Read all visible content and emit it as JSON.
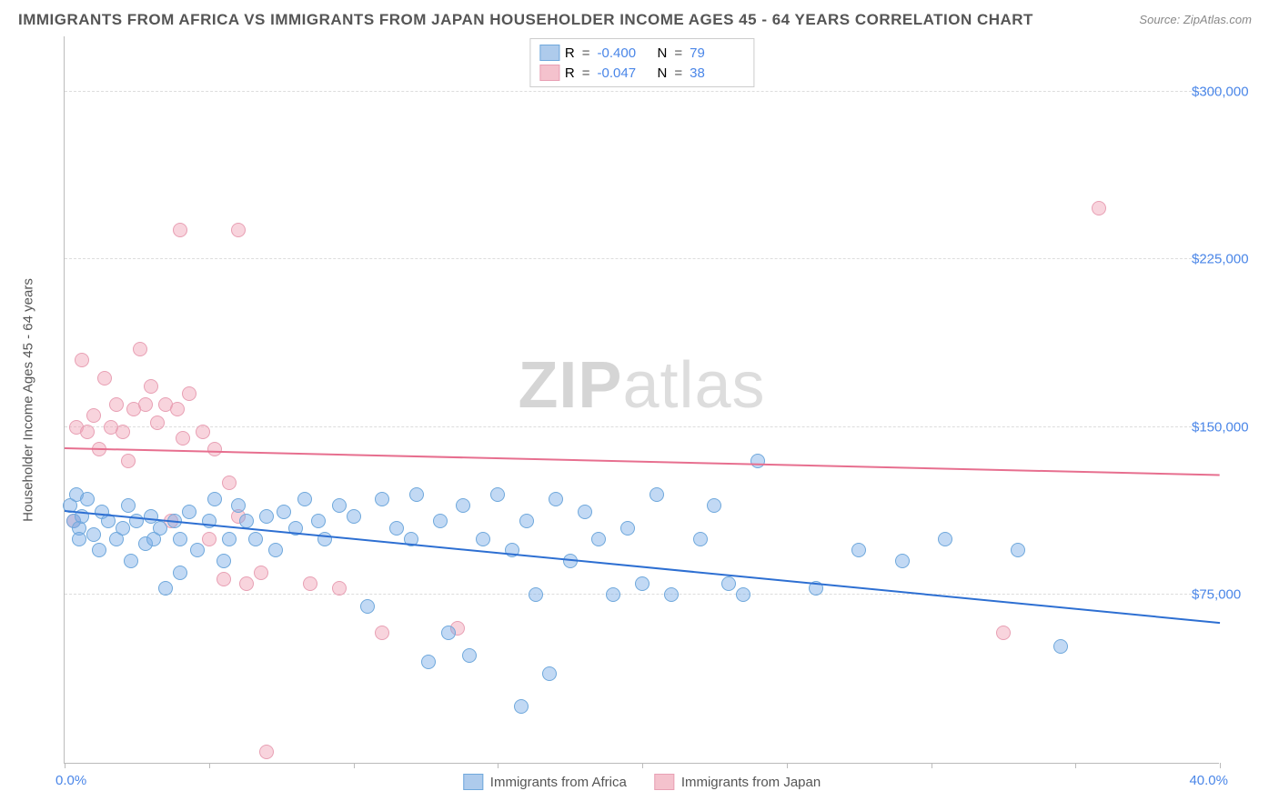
{
  "title": "IMMIGRANTS FROM AFRICA VS IMMIGRANTS FROM JAPAN HOUSEHOLDER INCOME AGES 45 - 64 YEARS CORRELATION CHART",
  "source_label": "Source:",
  "source_value": "ZipAtlas.com",
  "watermark_a": "ZIP",
  "watermark_b": "atlas",
  "yaxis_title": "Householder Income Ages 45 - 64 years",
  "chart": {
    "type": "scatter",
    "xlim": [
      0,
      40
    ],
    "ylim": [
      0,
      325000
    ],
    "x_tick_positions": [
      0,
      5,
      10,
      15,
      20,
      25,
      30,
      35,
      40
    ],
    "x_start_label": "0.0%",
    "x_end_label": "40.0%",
    "y_gridlines": [
      75000,
      150000,
      225000,
      300000
    ],
    "y_tick_labels": [
      "$75,000",
      "$150,000",
      "$225,000",
      "$300,000"
    ],
    "grid_color": "#dddddd",
    "axis_color": "#bbbbbb",
    "tick_label_color": "#4a86e8",
    "background_color": "#ffffff"
  },
  "series": [
    {
      "name": "Immigrants from Africa",
      "fill": "rgba(120,170,230,0.45)",
      "stroke": "#6fa8dc",
      "line_color": "#2d6fd2",
      "swatch_fill": "#aecbec",
      "swatch_border": "#6fa8dc",
      "R": "-0.400",
      "N": "79",
      "trend": {
        "x1": 0,
        "y1": 112000,
        "x2": 40,
        "y2": 62000
      },
      "points": [
        [
          0.2,
          115000
        ],
        [
          0.3,
          108000
        ],
        [
          0.4,
          120000
        ],
        [
          0.5,
          105000
        ],
        [
          0.5,
          100000
        ],
        [
          0.6,
          110000
        ],
        [
          0.8,
          118000
        ],
        [
          1.0,
          102000
        ],
        [
          1.2,
          95000
        ],
        [
          1.3,
          112000
        ],
        [
          1.5,
          108000
        ],
        [
          1.8,
          100000
        ],
        [
          2.0,
          105000
        ],
        [
          2.2,
          115000
        ],
        [
          2.3,
          90000
        ],
        [
          2.5,
          108000
        ],
        [
          2.8,
          98000
        ],
        [
          3.0,
          110000
        ],
        [
          3.1,
          100000
        ],
        [
          3.3,
          105000
        ],
        [
          3.5,
          78000
        ],
        [
          3.8,
          108000
        ],
        [
          4.0,
          85000
        ],
        [
          4.0,
          100000
        ],
        [
          4.3,
          112000
        ],
        [
          4.6,
          95000
        ],
        [
          5.0,
          108000
        ],
        [
          5.2,
          118000
        ],
        [
          5.5,
          90000
        ],
        [
          5.7,
          100000
        ],
        [
          6.0,
          115000
        ],
        [
          6.3,
          108000
        ],
        [
          6.6,
          100000
        ],
        [
          7.0,
          110000
        ],
        [
          7.3,
          95000
        ],
        [
          7.6,
          112000
        ],
        [
          8.0,
          105000
        ],
        [
          8.3,
          118000
        ],
        [
          8.8,
          108000
        ],
        [
          9.0,
          100000
        ],
        [
          9.5,
          115000
        ],
        [
          10.0,
          110000
        ],
        [
          10.5,
          70000
        ],
        [
          11.0,
          118000
        ],
        [
          11.5,
          105000
        ],
        [
          12.0,
          100000
        ],
        [
          12.2,
          120000
        ],
        [
          12.6,
          45000
        ],
        [
          13.0,
          108000
        ],
        [
          13.3,
          58000
        ],
        [
          13.8,
          115000
        ],
        [
          14.0,
          48000
        ],
        [
          14.5,
          100000
        ],
        [
          15.0,
          120000
        ],
        [
          15.5,
          95000
        ],
        [
          16.0,
          108000
        ],
        [
          16.3,
          75000
        ],
        [
          16.8,
          40000
        ],
        [
          17.0,
          118000
        ],
        [
          17.5,
          90000
        ],
        [
          18.0,
          112000
        ],
        [
          18.5,
          100000
        ],
        [
          19.0,
          75000
        ],
        [
          19.5,
          105000
        ],
        [
          20.0,
          80000
        ],
        [
          20.5,
          120000
        ],
        [
          21.0,
          75000
        ],
        [
          22.0,
          100000
        ],
        [
          22.5,
          115000
        ],
        [
          23.0,
          80000
        ],
        [
          23.5,
          75000
        ],
        [
          24.0,
          135000
        ],
        [
          26.0,
          78000
        ],
        [
          27.5,
          95000
        ],
        [
          29.0,
          90000
        ],
        [
          30.5,
          100000
        ],
        [
          33.0,
          95000
        ],
        [
          34.5,
          52000
        ],
        [
          15.8,
          25000
        ]
      ]
    },
    {
      "name": "Immigrants from Japan",
      "fill": "rgba(240,160,180,0.45)",
      "stroke": "#e8a0b4",
      "line_color": "#e76f8f",
      "swatch_fill": "#f4c2cd",
      "swatch_border": "#e8a0b4",
      "R": "-0.047",
      "N": "38",
      "trend": {
        "x1": 0,
        "y1": 140000,
        "x2": 40,
        "y2": 128000
      },
      "points": [
        [
          0.4,
          150000
        ],
        [
          0.6,
          180000
        ],
        [
          0.8,
          148000
        ],
        [
          1.0,
          155000
        ],
        [
          1.2,
          140000
        ],
        [
          1.4,
          172000
        ],
        [
          1.6,
          150000
        ],
        [
          1.8,
          160000
        ],
        [
          2.0,
          148000
        ],
        [
          2.2,
          135000
        ],
        [
          2.4,
          158000
        ],
        [
          2.6,
          185000
        ],
        [
          2.8,
          160000
        ],
        [
          3.0,
          168000
        ],
        [
          3.2,
          152000
        ],
        [
          3.5,
          160000
        ],
        [
          3.7,
          108000
        ],
        [
          3.9,
          158000
        ],
        [
          4.1,
          145000
        ],
        [
          4.3,
          165000
        ],
        [
          4.8,
          148000
        ],
        [
          5.0,
          100000
        ],
        [
          5.2,
          140000
        ],
        [
          5.5,
          82000
        ],
        [
          5.7,
          125000
        ],
        [
          6.0,
          110000
        ],
        [
          6.3,
          80000
        ],
        [
          6.8,
          85000
        ],
        [
          7.0,
          5000
        ],
        [
          4.0,
          238000
        ],
        [
          6.0,
          238000
        ],
        [
          8.5,
          80000
        ],
        [
          9.5,
          78000
        ],
        [
          11.0,
          58000
        ],
        [
          13.6,
          60000
        ],
        [
          32.5,
          58000
        ],
        [
          35.8,
          248000
        ],
        [
          0.3,
          108000
        ]
      ]
    }
  ],
  "legend_R_label": "R",
  "legend_N_label": "N",
  "legend_eq": "="
}
